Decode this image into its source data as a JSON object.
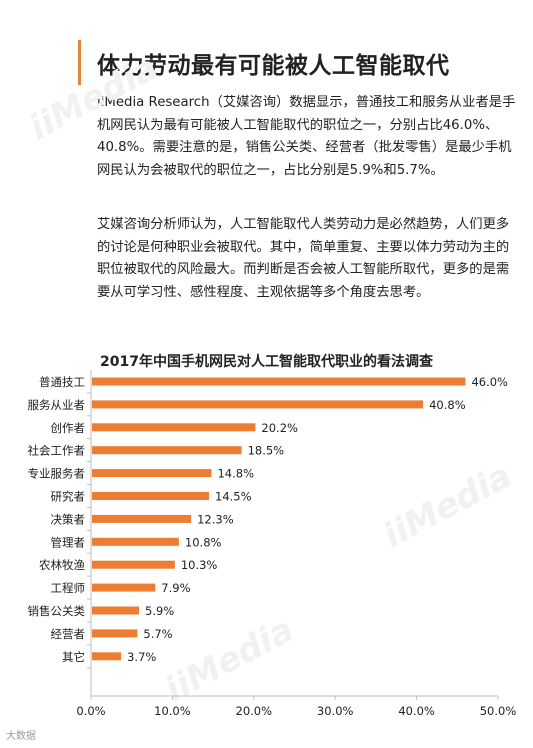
{
  "heading": "体力劳动最有可能被人工智能取代",
  "paragraphs": [
    "iiMedia Research（艾媒咨询）数据显示，普通技工和服务从业者是手机网民认为最有可能被人工智能取代的职位之一，分别占比46.0%、40.8%。需要注意的是，销售公关类、经营者（批发零售）是最少手机网民认为会被取代的职位之一，占比分别是5.9%和5.7%。",
    "艾媒咨询分析师认为，人工智能取代人类劳动力是必然趋势，人们更多的讨论是何种职业会被取代。其中，简单重复、主要以体力劳动为主的职位被取代的风险最大。而判断是否会被人工智能所取代，更多的是需要从可学习性、感性程度、主观依据等多个角度去思考。"
  ],
  "watermark": "iiMedia",
  "footer": "大数据",
  "chart_data": {
    "type": "bar",
    "orientation": "horizontal",
    "title": "2017年中国手机网民对人工智能取代职业的看法调查",
    "categories": [
      "普通技工",
      "服务从业者",
      "创作者",
      "社会工作者",
      "专业服务者",
      "研究者",
      "决策者",
      "管理者",
      "农林牧渔",
      "工程师",
      "销售公关类",
      "经营者",
      "其它"
    ],
    "values": [
      46.0,
      40.8,
      20.2,
      18.5,
      14.8,
      14.5,
      12.3,
      10.8,
      10.3,
      7.9,
      5.9,
      5.7,
      3.7
    ],
    "value_labels": [
      "46.0%",
      "40.8%",
      "20.2%",
      "18.5%",
      "14.8%",
      "14.5%",
      "12.3%",
      "10.8%",
      "10.3%",
      "7.9%",
      "5.9%",
      "5.7%",
      "3.7%"
    ],
    "xlim": [
      0,
      50
    ],
    "x_ticks": [
      0,
      10,
      20,
      30,
      40,
      50
    ],
    "x_tick_labels": [
      "0.0%",
      "10.0%",
      "20.0%",
      "30.0%",
      "40.0%",
      "50.0%"
    ],
    "bar_color": "#ed7d31",
    "grid": false
  }
}
